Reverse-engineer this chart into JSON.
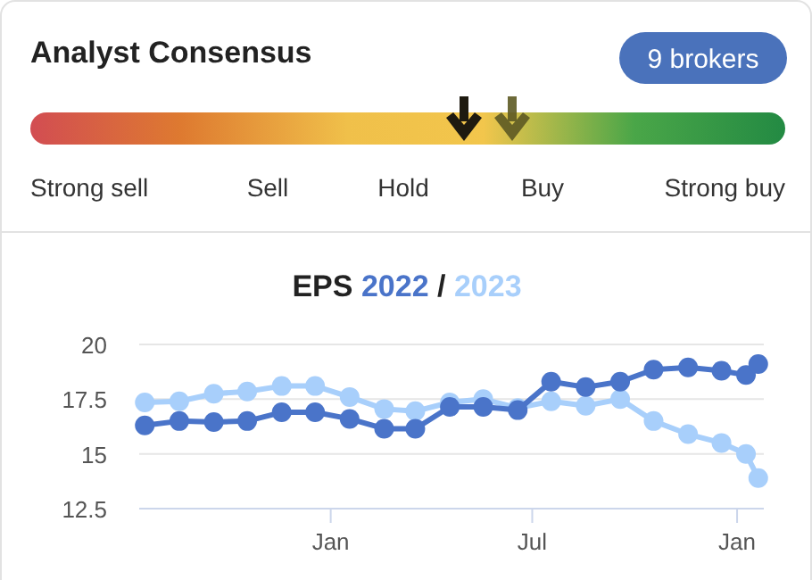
{
  "chart_data": [
    {
      "type": "other",
      "title": "Analyst Consensus",
      "categories": [
        "Strong sell",
        "Sell",
        "Hold",
        "Buy",
        "Strong buy"
      ],
      "annotations": [
        "9 brokers"
      ]
    },
    {
      "type": "line",
      "title": "EPS",
      "annotations": [
        "/"
      ],
      "legend": "top",
      "marker": "circle",
      "grid": "y",
      "x": [
        "2021-07-18",
        "2021-08-18",
        "2021-09-18",
        "2021-10-18",
        "2021-11-18",
        "2021-12-18",
        "2022-01-18",
        "2022-02-18",
        "2022-03-18",
        "2022-04-18",
        "2022-05-18",
        "2022-06-18",
        "2022-07-18",
        "2022-08-18",
        "2022-09-18",
        "2022-10-18",
        "2022-11-18",
        "2022-12-18",
        "2023-01-09",
        "2023-01-20"
      ],
      "series": [
        {
          "name": "2022",
          "color": "#4a74c9",
          "values": [
            16.3,
            16.5,
            16.45,
            16.5,
            16.9,
            16.9,
            16.6,
            16.15,
            16.15,
            17.15,
            17.15,
            17.0,
            18.3,
            18.05,
            18.3,
            18.85,
            18.95,
            18.8,
            18.6,
            19.1
          ]
        },
        {
          "name": "2023",
          "color": "#a8cffb",
          "values": [
            17.35,
            17.4,
            17.75,
            17.85,
            18.1,
            18.1,
            17.6,
            17.05,
            16.95,
            17.35,
            17.5,
            17.1,
            17.4,
            17.2,
            17.5,
            16.5,
            15.9,
            15.5,
            15.0,
            13.9
          ]
        }
      ],
      "xlim": [
        "2021-07-13",
        "2023-01-25"
      ],
      "xticks": [
        {
          "value": "2022-01-01",
          "label": "Jan"
        },
        {
          "value": "2022-07-01",
          "label": "Jul"
        },
        {
          "value": "2023-01-01",
          "label": "Jan"
        }
      ],
      "ylim": [
        12.5,
        20
      ],
      "yticks": [
        {
          "value": 12.5,
          "label": "12.5"
        },
        {
          "value": 15,
          "label": "15"
        },
        {
          "value": 17.5,
          "label": "17.5"
        },
        {
          "value": 20,
          "label": "20"
        }
      ]
    }
  ]
}
